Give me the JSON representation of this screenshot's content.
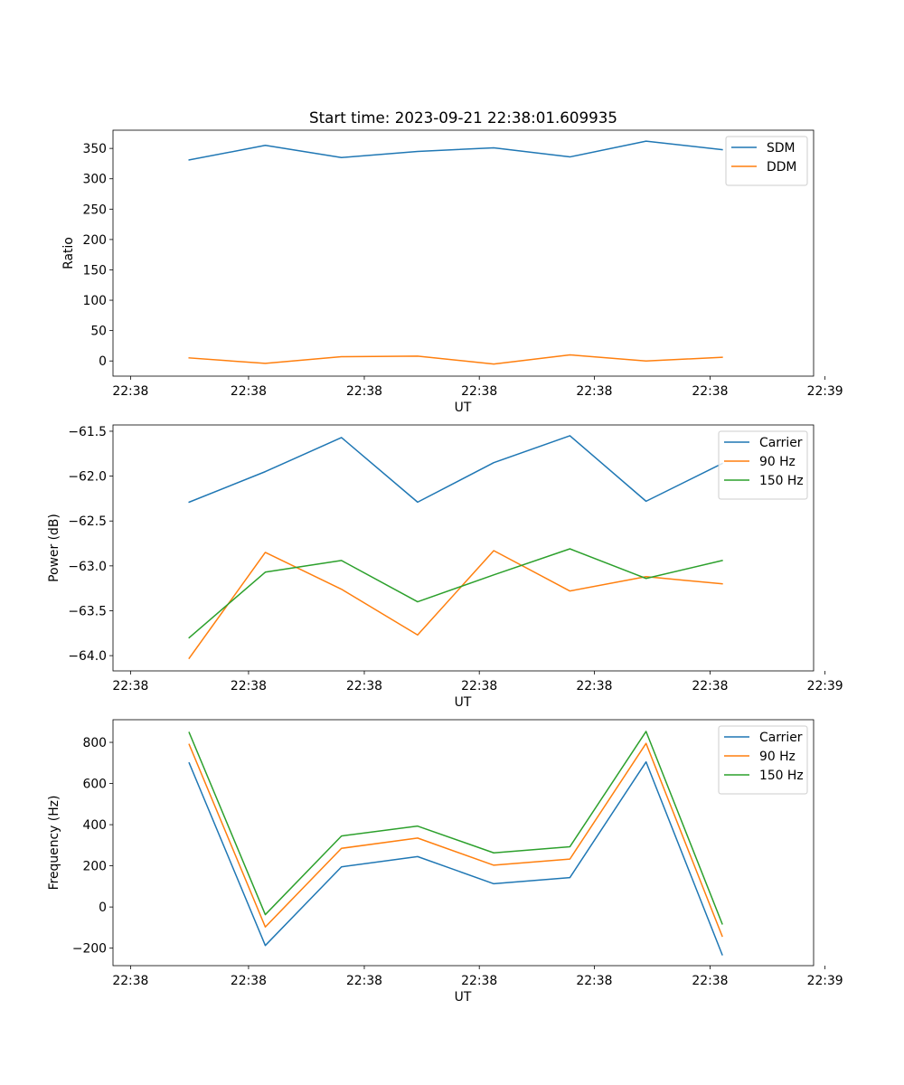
{
  "title": "Start time: 2023-09-21 22:38:01.609935",
  "colors": {
    "blue": "#1f77b4",
    "orange": "#ff7f0e",
    "green": "#2ca02c"
  },
  "chart_data": [
    {
      "type": "line",
      "title": "Start time: 2023-09-21 22:38:01.609935",
      "xlabel": "UT",
      "ylabel": "Ratio",
      "x": [
        1,
        2,
        3,
        4,
        5,
        6,
        7,
        8
      ],
      "xlim": [
        0,
        9.2
      ],
      "xticks": [
        0.23,
        1.78,
        3.3,
        4.81,
        6.32,
        7.84,
        9.35
      ],
      "xtick_labels": [
        "22:38",
        "22:38",
        "22:38",
        "22:38",
        "22:38",
        "22:38",
        "22:39"
      ],
      "ylim": [
        -25,
        380
      ],
      "yticks": [
        0,
        50,
        100,
        150,
        200,
        250,
        300,
        350
      ],
      "ytick_labels": [
        "0",
        "50",
        "100",
        "150",
        "200",
        "250",
        "300",
        "350"
      ],
      "legend": "top-right",
      "series": [
        {
          "name": "SDM",
          "color": "#1f77b4",
          "values": [
            331,
            355,
            335,
            345,
            351,
            336,
            362,
            348
          ]
        },
        {
          "name": "DDM",
          "color": "#ff7f0e",
          "values": [
            5,
            -4,
            7,
            8,
            -5,
            10,
            0,
            6
          ]
        }
      ]
    },
    {
      "type": "line",
      "title": "",
      "xlabel": "UT",
      "ylabel": "Power (dB)",
      "x": [
        1,
        2,
        3,
        4,
        5,
        6,
        7,
        8
      ],
      "xlim": [
        0,
        9.2
      ],
      "xticks": [
        0.23,
        1.78,
        3.3,
        4.81,
        6.32,
        7.84,
        9.35
      ],
      "xtick_labels": [
        "22:38",
        "22:38",
        "22:38",
        "22:38",
        "22:38",
        "22:38",
        "22:39"
      ],
      "ylim": [
        -64.17,
        -61.43
      ],
      "yticks": [
        -64.0,
        -63.5,
        -63.0,
        -62.5,
        -62.0,
        -61.5
      ],
      "ytick_labels": [
        "−64.0",
        "−63.5",
        "−63.0",
        "−62.5",
        "−62.0",
        "−61.5"
      ],
      "legend": "top-right",
      "series": [
        {
          "name": "Carrier",
          "color": "#1f77b4",
          "values": [
            -62.29,
            -61.95,
            -61.57,
            -62.29,
            -61.85,
            -61.55,
            -62.28,
            -61.86
          ]
        },
        {
          "name": "90 Hz",
          "color": "#ff7f0e",
          "values": [
            -64.03,
            -62.85,
            -63.26,
            -63.77,
            -62.83,
            -63.28,
            -63.12,
            -63.2
          ]
        },
        {
          "name": "150 Hz",
          "color": "#2ca02c",
          "values": [
            -63.8,
            -63.07,
            -62.94,
            -63.4,
            -63.1,
            -62.81,
            -63.14,
            -62.94
          ]
        }
      ]
    },
    {
      "type": "line",
      "title": "",
      "xlabel": "UT",
      "ylabel": "Frequency (Hz)",
      "x": [
        1,
        2,
        3,
        4,
        5,
        6,
        7,
        8
      ],
      "xlim": [
        0,
        9.2
      ],
      "xticks": [
        0.23,
        1.78,
        3.3,
        4.81,
        6.32,
        7.84,
        9.35
      ],
      "xtick_labels": [
        "22:38",
        "22:38",
        "22:38",
        "22:38",
        "22:38",
        "22:38",
        "22:39"
      ],
      "ylim": [
        -285,
        910
      ],
      "yticks": [
        -200,
        0,
        200,
        400,
        600,
        800
      ],
      "ytick_labels": [
        "−200",
        "0",
        "200",
        "400",
        "600",
        "800"
      ],
      "legend": "top-right",
      "series": [
        {
          "name": "Carrier",
          "color": "#1f77b4",
          "values": [
            700,
            -187,
            195,
            245,
            113,
            143,
            705,
            -232
          ]
        },
        {
          "name": "90 Hz",
          "color": "#ff7f0e",
          "values": [
            790,
            -97,
            285,
            335,
            203,
            233,
            795,
            -142
          ]
        },
        {
          "name": "150 Hz",
          "color": "#2ca02c",
          "values": [
            848,
            -37,
            345,
            393,
            263,
            293,
            853,
            -82
          ]
        }
      ]
    }
  ]
}
